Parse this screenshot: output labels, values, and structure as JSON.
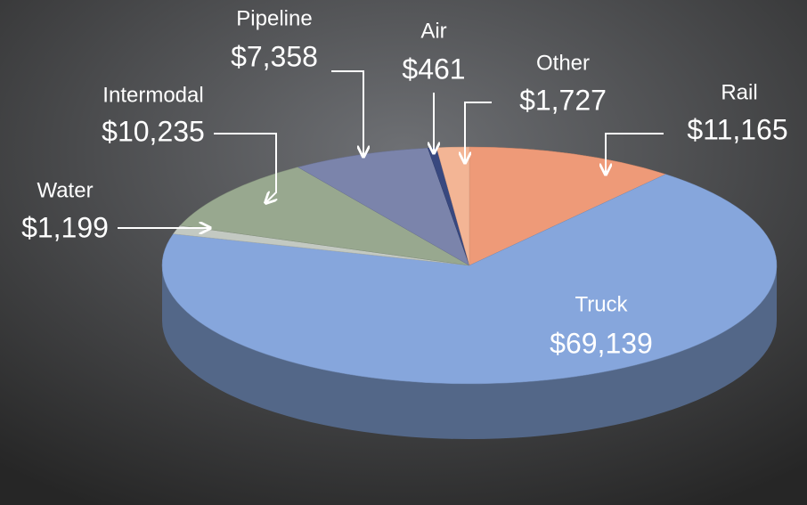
{
  "chart_data": {
    "type": "pie",
    "categories": [
      "Rail",
      "Truck",
      "Water",
      "Intermodal",
      "Pipeline",
      "Air",
      "Other"
    ],
    "values": [
      11165,
      69139,
      1199,
      10235,
      7358,
      461,
      1727
    ],
    "value_labels": [
      "$11,165",
      "$69,139",
      "$1,199",
      "$10,235",
      "$7,358",
      "$461",
      "$1,727"
    ],
    "colors": [
      "#ee9a78",
      "#86a6dc",
      "#c3c9c2",
      "#98a88f",
      "#7b84ab",
      "#38487f",
      "#f3b595"
    ]
  }
}
